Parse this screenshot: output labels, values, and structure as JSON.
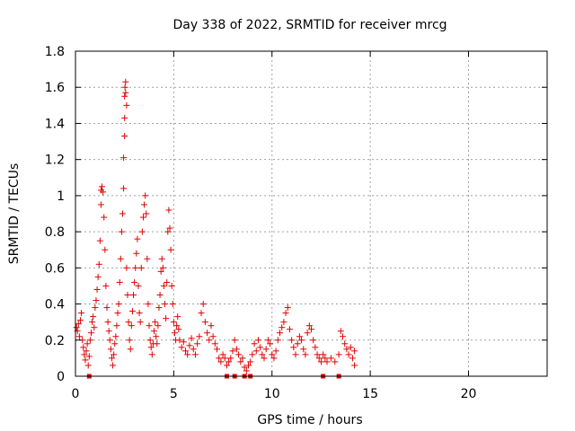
{
  "chart_data": {
    "type": "scatter",
    "title": "Day 338 of 2022, SRMTID for receiver mrcg",
    "xlabel": "GPS time / hours",
    "ylabel": "SRMTID / TECUs",
    "xlim": [
      0,
      24
    ],
    "ylim": [
      0,
      1.8
    ],
    "xticks": [
      "0",
      "5",
      "10",
      "15",
      "20"
    ],
    "yticks": [
      "0",
      "0.2",
      "0.4",
      "0.6",
      "0.8",
      "1",
      "1.2",
      "1.4",
      "1.6",
      "1.8"
    ],
    "marker": "plus",
    "color": "#e00000",
    "grid": true,
    "zero_markers_x": [
      0.7,
      7.7,
      8.1,
      8.6,
      8.9,
      12.6,
      13.4
    ],
    "series": [
      {
        "name": "SRMTID",
        "points": [
          [
            0.05,
            0.27
          ],
          [
            0.1,
            0.25
          ],
          [
            0.15,
            0.29
          ],
          [
            0.2,
            0.22
          ],
          [
            0.25,
            0.31
          ],
          [
            0.3,
            0.35
          ],
          [
            0.35,
            0.2
          ],
          [
            0.4,
            0.16
          ],
          [
            0.45,
            0.12
          ],
          [
            0.5,
            0.09
          ],
          [
            0.55,
            0.14
          ],
          [
            0.6,
            0.18
          ],
          [
            0.65,
            0.06
          ],
          [
            0.7,
            0.11
          ],
          [
            0.75,
            0.2
          ],
          [
            0.8,
            0.24
          ],
          [
            0.85,
            0.3
          ],
          [
            0.9,
            0.33
          ],
          [
            0.95,
            0.27
          ],
          [
            1.0,
            0.38
          ],
          [
            1.05,
            0.42
          ],
          [
            1.1,
            0.48
          ],
          [
            1.15,
            0.55
          ],
          [
            1.2,
            0.62
          ],
          [
            1.25,
            0.75
          ],
          [
            1.3,
            0.95
          ],
          [
            1.3,
            1.03
          ],
          [
            1.35,
            1.05
          ],
          [
            1.4,
            1.02
          ],
          [
            1.45,
            0.88
          ],
          [
            1.5,
            0.7
          ],
          [
            1.55,
            0.5
          ],
          [
            1.6,
            0.38
          ],
          [
            1.65,
            0.3
          ],
          [
            1.7,
            0.25
          ],
          [
            1.75,
            0.2
          ],
          [
            1.8,
            0.15
          ],
          [
            1.85,
            0.1
          ],
          [
            1.9,
            0.06
          ],
          [
            1.95,
            0.12
          ],
          [
            2.0,
            0.18
          ],
          [
            2.05,
            0.22
          ],
          [
            2.1,
            0.28
          ],
          [
            2.15,
            0.35
          ],
          [
            2.2,
            0.4
          ],
          [
            2.25,
            0.52
          ],
          [
            2.3,
            0.65
          ],
          [
            2.35,
            0.8
          ],
          [
            2.4,
            0.9
          ],
          [
            2.45,
            1.04
          ],
          [
            2.45,
            1.21
          ],
          [
            2.5,
            1.33
          ],
          [
            2.5,
            1.43
          ],
          [
            2.5,
            1.55
          ],
          [
            2.52,
            1.6
          ],
          [
            2.55,
            1.63
          ],
          [
            2.55,
            1.57
          ],
          [
            2.6,
            1.5
          ],
          [
            2.6,
            0.6
          ],
          [
            2.65,
            0.45
          ],
          [
            2.7,
            0.3
          ],
          [
            2.75,
            0.2
          ],
          [
            2.8,
            0.15
          ],
          [
            2.85,
            0.28
          ],
          [
            2.9,
            0.36
          ],
          [
            2.95,
            0.45
          ],
          [
            3.0,
            0.52
          ],
          [
            3.05,
            0.6
          ],
          [
            3.1,
            0.68
          ],
          [
            3.15,
            0.76
          ],
          [
            3.2,
            0.5
          ],
          [
            3.25,
            0.35
          ],
          [
            3.3,
            0.3
          ],
          [
            3.35,
            0.6
          ],
          [
            3.4,
            0.8
          ],
          [
            3.45,
            0.88
          ],
          [
            3.5,
            0.95
          ],
          [
            3.55,
            1.0
          ],
          [
            3.6,
            0.9
          ],
          [
            3.65,
            0.65
          ],
          [
            3.7,
            0.4
          ],
          [
            3.75,
            0.28
          ],
          [
            3.8,
            0.2
          ],
          [
            3.85,
            0.16
          ],
          [
            3.9,
            0.12
          ],
          [
            3.95,
            0.18
          ],
          [
            4.0,
            0.25
          ],
          [
            4.05,
            0.3
          ],
          [
            4.1,
            0.22
          ],
          [
            4.15,
            0.18
          ],
          [
            4.2,
            0.28
          ],
          [
            4.25,
            0.38
          ],
          [
            4.3,
            0.45
          ],
          [
            4.35,
            0.58
          ],
          [
            4.4,
            0.65
          ],
          [
            4.45,
            0.6
          ],
          [
            4.5,
            0.5
          ],
          [
            4.55,
            0.4
          ],
          [
            4.6,
            0.32
          ],
          [
            4.65,
            0.52
          ],
          [
            4.7,
            0.8
          ],
          [
            4.75,
            0.92
          ],
          [
            4.8,
            0.82
          ],
          [
            4.85,
            0.7
          ],
          [
            4.9,
            0.5
          ],
          [
            4.95,
            0.4
          ],
          [
            5.0,
            0.3
          ],
          [
            5.05,
            0.24
          ],
          [
            5.1,
            0.2
          ],
          [
            5.15,
            0.28
          ],
          [
            5.2,
            0.33
          ],
          [
            5.25,
            0.26
          ],
          [
            5.3,
            0.2
          ],
          [
            5.4,
            0.16
          ],
          [
            5.5,
            0.19
          ],
          [
            5.6,
            0.14
          ],
          [
            5.7,
            0.12
          ],
          [
            5.8,
            0.17
          ],
          [
            5.9,
            0.21
          ],
          [
            6.0,
            0.15
          ],
          [
            6.1,
            0.12
          ],
          [
            6.2,
            0.18
          ],
          [
            6.3,
            0.22
          ],
          [
            6.4,
            0.35
          ],
          [
            6.5,
            0.4
          ],
          [
            6.6,
            0.3
          ],
          [
            6.7,
            0.24
          ],
          [
            6.8,
            0.2
          ],
          [
            6.9,
            0.28
          ],
          [
            7.0,
            0.22
          ],
          [
            7.1,
            0.18
          ],
          [
            7.2,
            0.15
          ],
          [
            7.3,
            0.1
          ],
          [
            7.4,
            0.08
          ],
          [
            7.5,
            0.12
          ],
          [
            7.6,
            0.1
          ],
          [
            7.7,
            0.06
          ],
          [
            7.8,
            0.08
          ],
          [
            7.9,
            0.1
          ],
          [
            8.0,
            0.14
          ],
          [
            8.1,
            0.2
          ],
          [
            8.2,
            0.15
          ],
          [
            8.3,
            0.12
          ],
          [
            8.4,
            0.08
          ],
          [
            8.5,
            0.1
          ],
          [
            8.6,
            0.05
          ],
          [
            8.7,
            0.03
          ],
          [
            8.8,
            0.06
          ],
          [
            8.9,
            0.08
          ],
          [
            9.0,
            0.12
          ],
          [
            9.1,
            0.18
          ],
          [
            9.2,
            0.14
          ],
          [
            9.3,
            0.2
          ],
          [
            9.4,
            0.16
          ],
          [
            9.5,
            0.12
          ],
          [
            9.6,
            0.1
          ],
          [
            9.7,
            0.15
          ],
          [
            9.8,
            0.2
          ],
          [
            9.9,
            0.18
          ],
          [
            10.0,
            0.12
          ],
          [
            10.1,
            0.1
          ],
          [
            10.2,
            0.14
          ],
          [
            10.3,
            0.2
          ],
          [
            10.4,
            0.24
          ],
          [
            10.5,
            0.27
          ],
          [
            10.6,
            0.3
          ],
          [
            10.7,
            0.35
          ],
          [
            10.8,
            0.38
          ],
          [
            10.9,
            0.26
          ],
          [
            11.0,
            0.2
          ],
          [
            11.1,
            0.16
          ],
          [
            11.2,
            0.12
          ],
          [
            11.3,
            0.18
          ],
          [
            11.4,
            0.22
          ],
          [
            11.5,
            0.2
          ],
          [
            11.6,
            0.15
          ],
          [
            11.7,
            0.12
          ],
          [
            11.8,
            0.24
          ],
          [
            11.9,
            0.28
          ],
          [
            12.0,
            0.26
          ],
          [
            12.1,
            0.2
          ],
          [
            12.2,
            0.16
          ],
          [
            12.3,
            0.12
          ],
          [
            12.4,
            0.1
          ],
          [
            12.5,
            0.08
          ],
          [
            12.6,
            0.12
          ],
          [
            12.7,
            0.1
          ],
          [
            12.8,
            0.08
          ],
          [
            13.0,
            0.1
          ],
          [
            13.2,
            0.08
          ],
          [
            13.4,
            0.12
          ],
          [
            13.5,
            0.25
          ],
          [
            13.6,
            0.22
          ],
          [
            13.7,
            0.18
          ],
          [
            13.8,
            0.15
          ],
          [
            13.9,
            0.12
          ],
          [
            14.0,
            0.16
          ],
          [
            14.1,
            0.1
          ],
          [
            14.2,
            0.06
          ],
          [
            14.2,
            0.14
          ]
        ]
      }
    ]
  }
}
